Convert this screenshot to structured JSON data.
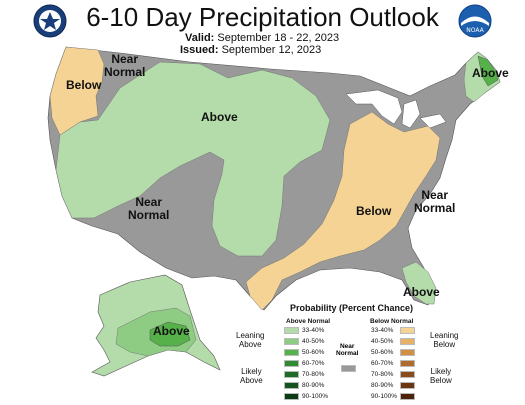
{
  "header": {
    "title": "6-10 Day Precipitation Outlook",
    "valid_label": "Valid:",
    "valid_value": "September 18 - 22, 2023",
    "issued_label": "Issued:",
    "issued_value": "September 12, 2023"
  },
  "logos": {
    "left": "doc-seal-icon",
    "right": "noaa-logo-icon",
    "right_text": "NOAA"
  },
  "map_labels": {
    "west_coast": "Below",
    "northwest_near_normal": "Near\nNormal",
    "central_above": "Above",
    "southwest_near_normal": "Near\nNormal",
    "southeast_below": "Below",
    "east_near_normal": "Near\nNormal",
    "maine_above": "Above",
    "florida_above": "Above",
    "alaska_above": "Above"
  },
  "legend": {
    "title": "Probability (Percent Chance)",
    "above_header": "Above Normal",
    "below_header": "Below Normal",
    "near_normal_label": "Near\nNormal",
    "leaning_above": "Leaning\nAbove",
    "likely_above": "Likely\nAbove",
    "leaning_below": "Leaning\nBelow",
    "likely_below": "Likely\nBelow",
    "above_levels": [
      "33-40%",
      "40-50%",
      "50-60%",
      "60-70%",
      "70-80%",
      "80-90%",
      "90-100%"
    ],
    "below_levels": [
      "33-40%",
      "40-50%",
      "50-60%",
      "60-70%",
      "70-80%",
      "80-90%",
      "90-100%"
    ],
    "above_colors": [
      "#b4dcab",
      "#8ecb83",
      "#56b14b",
      "#2f8a33",
      "#1f6a26",
      "#155220",
      "#0c3a15"
    ],
    "below_colors": [
      "#f5d394",
      "#e6b26a",
      "#d08f45",
      "#b06c2c",
      "#8a4c1a",
      "#6b3512",
      "#4c220a"
    ],
    "near_normal_color": "#999999"
  },
  "colors": {
    "near_normal": "#999999",
    "above_33": "#b4dcab",
    "above_40": "#8ecb83",
    "above_50": "#56b14b",
    "below_33": "#f5d394",
    "water": "#ffffff"
  }
}
